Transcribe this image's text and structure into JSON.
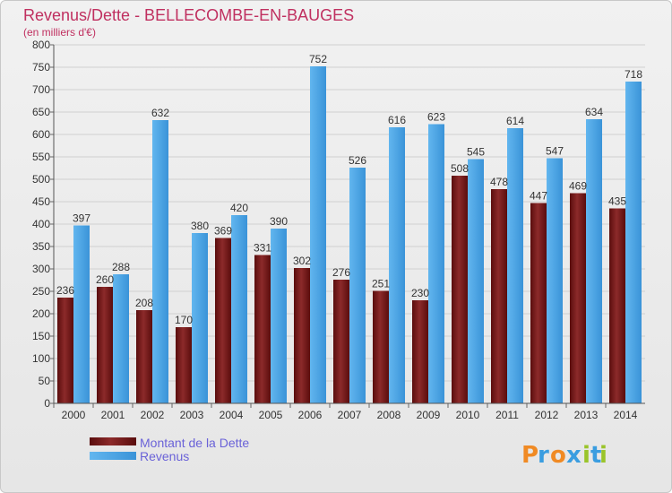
{
  "chart_data": {
    "type": "bar",
    "title": "Revenus/Dette - BELLECOMBE-EN-BAUGES",
    "subtitle": "(en milliers d'€)",
    "xlabel": "",
    "ylabel": "",
    "ylim": [
      0,
      800
    ],
    "ytick_step": 50,
    "grid": true,
    "categories": [
      "2000",
      "2001",
      "2002",
      "2003",
      "2004",
      "2005",
      "2006",
      "2007",
      "2008",
      "2009",
      "2010",
      "2011",
      "2012",
      "2013",
      "2014"
    ],
    "series": [
      {
        "name": "Montant de la Dette",
        "color": "#7a1b1b",
        "values": [
          236,
          260,
          208,
          170,
          369,
          331,
          302,
          276,
          251,
          230,
          508,
          478,
          447,
          469,
          435
        ]
      },
      {
        "name": "Revenus",
        "color": "#4aa3e6",
        "values": [
          397,
          288,
          632,
          380,
          420,
          390,
          752,
          526,
          616,
          623,
          545,
          614,
          547,
          634,
          718
        ]
      }
    ],
    "legend": "bottom-left"
  },
  "logo": {
    "letters": [
      "P",
      "r",
      "o",
      "x",
      "i",
      "t",
      "i"
    ]
  },
  "colors": {
    "title": "#c03060",
    "grid": "#d0d0d0",
    "debt_dark": "#5a0d0d",
    "debt_light": "#8c2a2a",
    "rev_dark": "#2f86cc",
    "rev_light": "#62b6ef",
    "logo": [
      "#f08a24",
      "#3a9de0",
      "#f08a24",
      "#3a9de0",
      "#9ac42a",
      "#3a9de0",
      "#9ac42a"
    ]
  }
}
